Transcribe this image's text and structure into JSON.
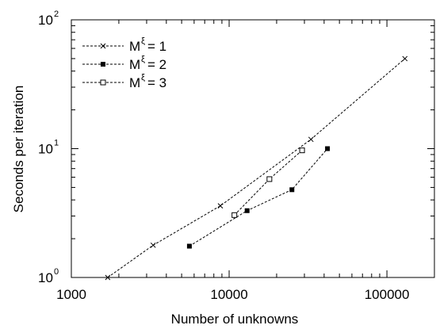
{
  "chart_data": {
    "type": "line",
    "xlabel": "Number of unknowns",
    "ylabel": "Seconds per iteration",
    "xscale": "log",
    "yscale": "log",
    "xlim": [
      1000,
      200000
    ],
    "ylim": [
      1,
      100
    ],
    "grid": false,
    "legend_position": "top-left",
    "x_tick_labels": [
      "1000",
      "10000",
      "100000"
    ],
    "y_tick_labels": [
      {
        "base": "10",
        "exp": "0"
      },
      {
        "base": "10",
        "exp": "1"
      },
      {
        "base": "10",
        "exp": "2"
      }
    ],
    "series": [
      {
        "name_prefix": "M",
        "name_sup": "ξ",
        "name_suffix": " = 1",
        "marker": "cross",
        "x": [
          1700,
          3300,
          8800,
          33000,
          130000
        ],
        "y": [
          1.0,
          1.78,
          3.6,
          11.8,
          50
        ]
      },
      {
        "name_prefix": "M",
        "name_sup": "ξ",
        "name_suffix": " = 2",
        "marker": "filled-square",
        "x": [
          5600,
          13000,
          25000,
          42000
        ],
        "y": [
          1.75,
          3.3,
          4.8,
          10
        ]
      },
      {
        "name_prefix": "M",
        "name_sup": "ξ",
        "name_suffix": " = 3",
        "marker": "open-square",
        "x": [
          10800,
          18000,
          29000
        ],
        "y": [
          3.05,
          5.8,
          9.7
        ]
      }
    ]
  }
}
